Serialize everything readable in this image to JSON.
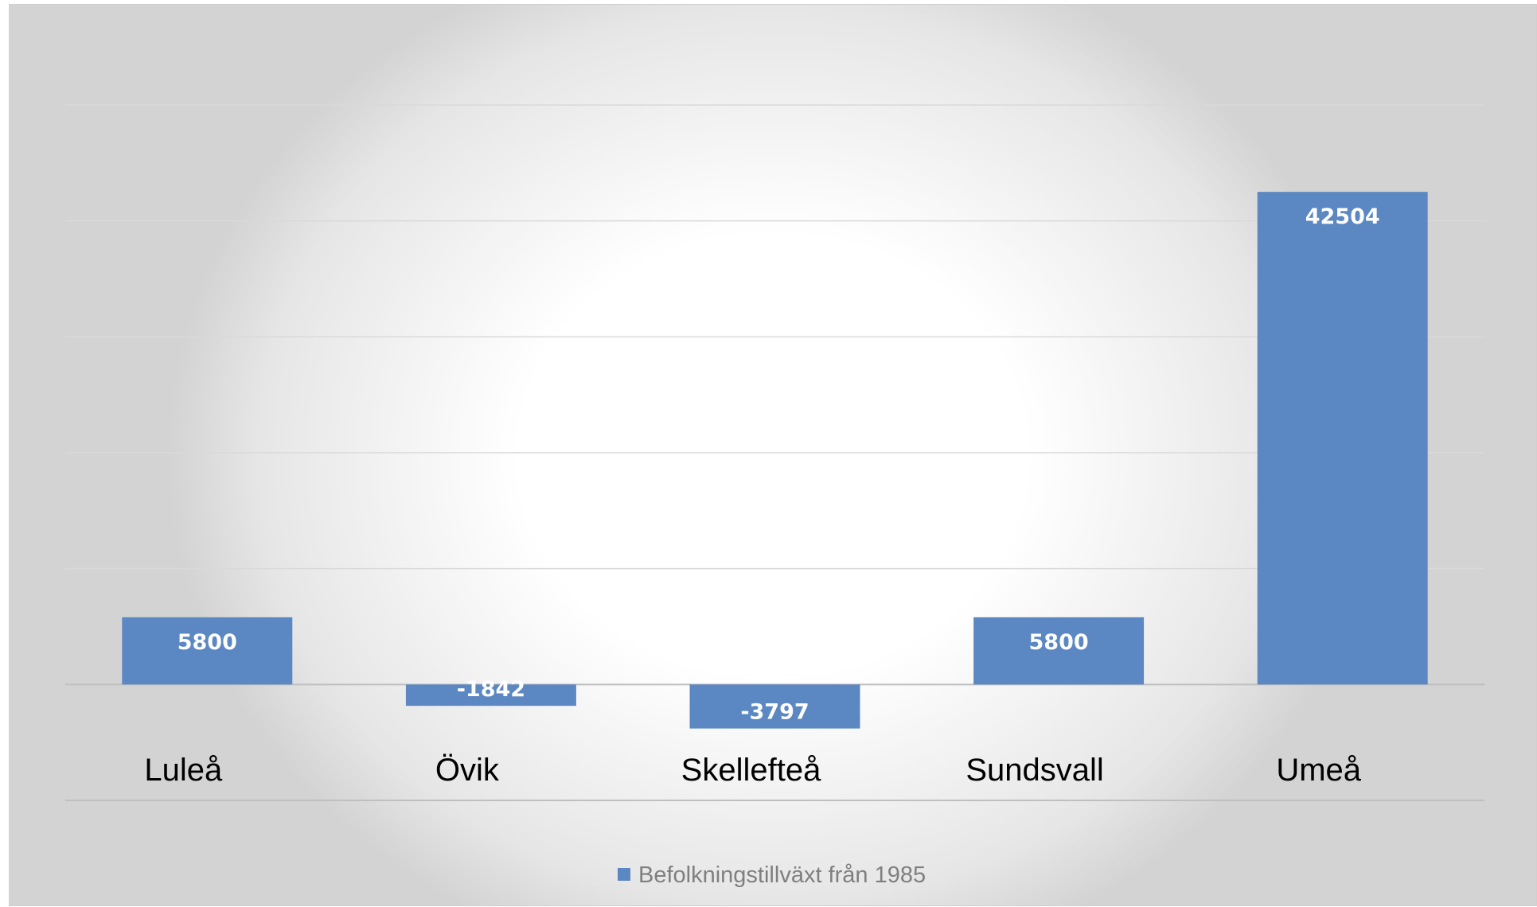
{
  "chart_data": {
    "type": "bar",
    "categories": [
      "Luleå",
      "Övik",
      "Skellefteå",
      "Sundsvall",
      "Umeå"
    ],
    "series": [
      {
        "name": "Befolkningstillväxt från 1985",
        "values": [
          5800,
          -1842,
          -3797,
          5800,
          42504
        ],
        "value_labels": [
          "5800",
          "-1842",
          "-3797",
          "5800",
          "42504"
        ]
      }
    ],
    "ylim": [
      -10000,
      50000
    ],
    "gridline_step": 10000,
    "grid": true,
    "y_tick_labels_visible": false,
    "legend_position": "bottom",
    "colors": {
      "series": "#5b87c2",
      "gridline": "#d9d9d9",
      "axis": "#bfbfbf",
      "category_text": "#000000",
      "data_label_text": "#ffffff",
      "legend_text": "#7f7f7f"
    }
  }
}
